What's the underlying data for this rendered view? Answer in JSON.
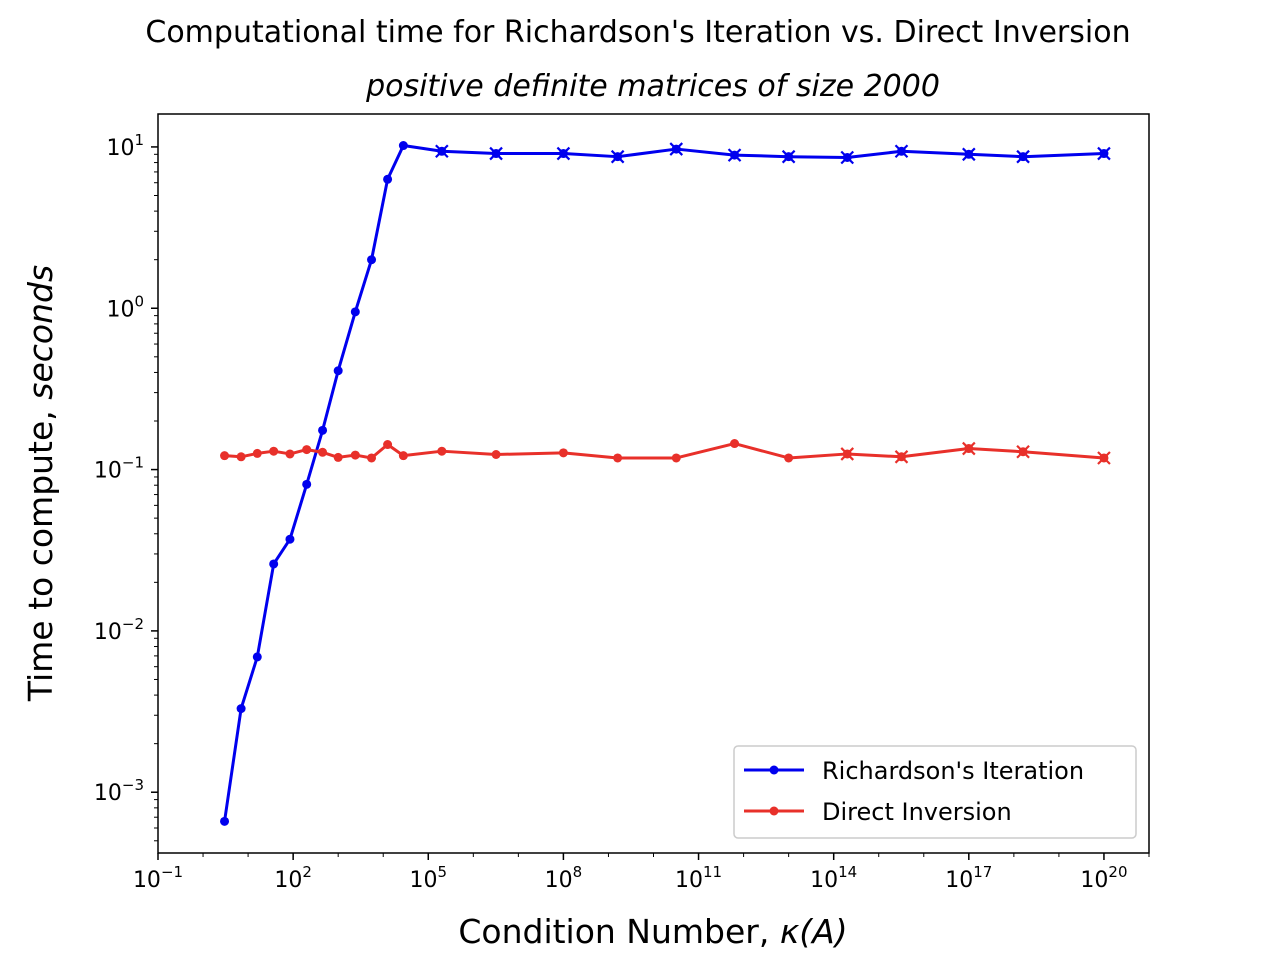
{
  "chart_data": {
    "type": "line",
    "title": "Computational time for Richardson's Iteration vs. Direct Inversion",
    "subtitle": "positive definite matrices of size 2000",
    "xlabel_main": "Condition Number, ",
    "xlabel_math": "κ(A)",
    "ylabel_main": "Time to compute, ",
    "ylabel_math": "seconds",
    "x_scale": "log",
    "y_scale": "log",
    "xlim": [
      0.1,
      1e+21
    ],
    "ylim": [
      0.00042,
      16
    ],
    "grid": false,
    "legend_position": "bottom-right",
    "x_ticks": [
      {
        "value": 0.1,
        "base": "10",
        "exp": "−1"
      },
      {
        "value": 100,
        "base": "10",
        "exp": "2"
      },
      {
        "value": 100000.0,
        "base": "10",
        "exp": "5"
      },
      {
        "value": 100000000.0,
        "base": "10",
        "exp": "8"
      },
      {
        "value": 100000000000.0,
        "base": "10",
        "exp": "11"
      },
      {
        "value": 100000000000000.0,
        "base": "10",
        "exp": "14"
      },
      {
        "value": 1e+17,
        "base": "10",
        "exp": "17"
      },
      {
        "value": 1e+20,
        "base": "10",
        "exp": "20"
      }
    ],
    "y_ticks": [
      {
        "value": 0.001,
        "base": "10",
        "exp": "−3"
      },
      {
        "value": 0.01,
        "base": "10",
        "exp": "−2"
      },
      {
        "value": 0.1,
        "base": "10",
        "exp": "−1"
      },
      {
        "value": 1,
        "base": "10",
        "exp": "0"
      },
      {
        "value": 10,
        "base": "10",
        "exp": "1"
      }
    ],
    "series": [
      {
        "name": "Richardson's Iteration",
        "color": "#0000ee",
        "points": [
          {
            "x": 3,
            "y": 0.00066
          },
          {
            "x": 7,
            "y": 0.0033
          },
          {
            "x": 16,
            "y": 0.0069
          },
          {
            "x": 37,
            "y": 0.026
          },
          {
            "x": 85,
            "y": 0.037
          },
          {
            "x": 200,
            "y": 0.081
          },
          {
            "x": 450,
            "y": 0.175
          },
          {
            "x": 1000,
            "y": 0.41
          },
          {
            "x": 2400,
            "y": 0.95
          },
          {
            "x": 5500,
            "y": 2.0
          },
          {
            "x": 12500,
            "y": 6.3
          },
          {
            "x": 28000,
            "y": 10.2
          },
          {
            "x": 200000.0,
            "y": 9.4,
            "marker": "x"
          },
          {
            "x": 3200000.0,
            "y": 9.1,
            "marker": "x"
          },
          {
            "x": 100000000.0,
            "y": 9.1,
            "marker": "x"
          },
          {
            "x": 1600000000.0,
            "y": 8.7,
            "marker": "x"
          },
          {
            "x": 32000000000.0,
            "y": 9.7,
            "marker": "x"
          },
          {
            "x": 630000000000.0,
            "y": 8.9,
            "marker": "x"
          },
          {
            "x": 10000000000000.0,
            "y": 8.7,
            "marker": "x"
          },
          {
            "x": 200000000000000.0,
            "y": 8.6,
            "marker": "x"
          },
          {
            "x": 3200000000000000.0,
            "y": 9.4,
            "marker": "x"
          },
          {
            "x": 1e+17,
            "y": 9.0,
            "marker": "x"
          },
          {
            "x": 1.6e+18,
            "y": 8.7,
            "marker": "x"
          },
          {
            "x": 1e+20,
            "y": 9.1,
            "marker": "x"
          }
        ]
      },
      {
        "name": "Direct Inversion",
        "color": "#e8302a",
        "points": [
          {
            "x": 3,
            "y": 0.122
          },
          {
            "x": 7,
            "y": 0.12
          },
          {
            "x": 16,
            "y": 0.126
          },
          {
            "x": 37,
            "y": 0.13
          },
          {
            "x": 85,
            "y": 0.125
          },
          {
            "x": 200,
            "y": 0.133
          },
          {
            "x": 450,
            "y": 0.128
          },
          {
            "x": 1000,
            "y": 0.119
          },
          {
            "x": 2400,
            "y": 0.123
          },
          {
            "x": 5500,
            "y": 0.118
          },
          {
            "x": 12500,
            "y": 0.143
          },
          {
            "x": 28000,
            "y": 0.122
          },
          {
            "x": 200000.0,
            "y": 0.13
          },
          {
            "x": 3200000.0,
            "y": 0.124
          },
          {
            "x": 100000000.0,
            "y": 0.127
          },
          {
            "x": 1600000000.0,
            "y": 0.118
          },
          {
            "x": 32000000000.0,
            "y": 0.118
          },
          {
            "x": 630000000000.0,
            "y": 0.145
          },
          {
            "x": 10000000000000.0,
            "y": 0.118
          },
          {
            "x": 200000000000000.0,
            "y": 0.125,
            "marker": "x"
          },
          {
            "x": 3200000000000000.0,
            "y": 0.12,
            "marker": "x"
          },
          {
            "x": 1e+17,
            "y": 0.135,
            "marker": "x"
          },
          {
            "x": 1.6e+18,
            "y": 0.129,
            "marker": "x"
          },
          {
            "x": 1e+20,
            "y": 0.118,
            "marker": "x"
          }
        ]
      }
    ]
  }
}
